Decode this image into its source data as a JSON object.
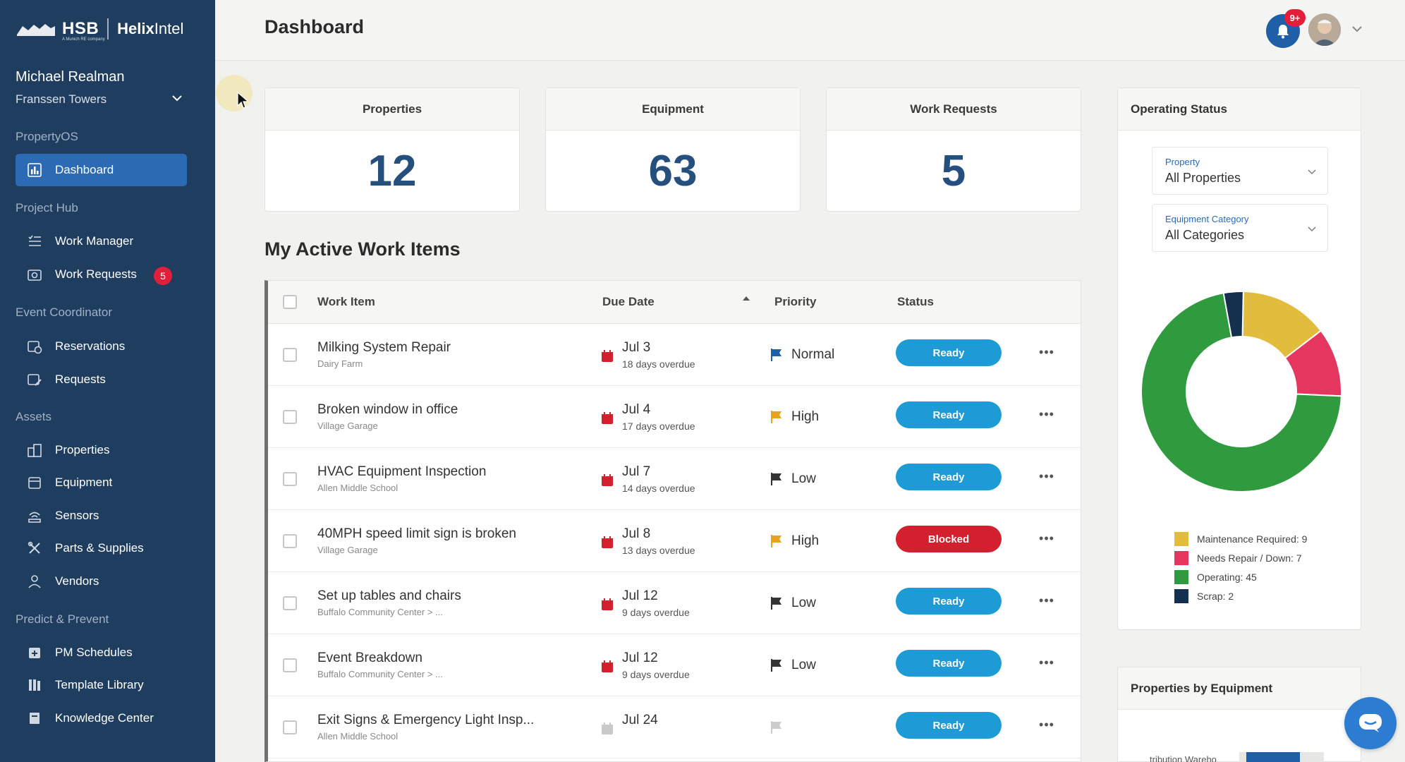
{
  "brand": {
    "company": "HSB",
    "company_sub": "A Munich RE company",
    "product_bold": "Helix",
    "product_light": "Intel"
  },
  "user": {
    "name": "Michael Realman",
    "property": "Franssen Towers"
  },
  "sidebar": {
    "sections": [
      {
        "title": "PropertyOS",
        "items": [
          {
            "label": "Dashboard",
            "icon": "chart-bars-icon",
            "active": true
          }
        ]
      },
      {
        "title": "Project Hub",
        "items": [
          {
            "label": "Work Manager",
            "icon": "list-check-icon"
          },
          {
            "label": "Work Requests",
            "icon": "camera-icon",
            "badge": "5"
          }
        ]
      },
      {
        "title": "Event Coordinator",
        "items": [
          {
            "label": "Reservations",
            "icon": "calendar-clock-icon"
          },
          {
            "label": "Requests",
            "icon": "calendar-edit-icon"
          }
        ]
      },
      {
        "title": "Assets",
        "items": [
          {
            "label": "Properties",
            "icon": "buildings-icon"
          },
          {
            "label": "Equipment",
            "icon": "equipment-box-icon"
          },
          {
            "label": "Sensors",
            "icon": "sensor-icon"
          },
          {
            "label": "Parts & Supplies",
            "icon": "tools-icon"
          },
          {
            "label": "Vendors",
            "icon": "person-icon"
          }
        ]
      },
      {
        "title": "Predict & Prevent",
        "items": [
          {
            "label": "PM Schedules",
            "icon": "calendar-plus-icon"
          },
          {
            "label": "Template Library",
            "icon": "library-icon"
          },
          {
            "label": "Knowledge Center",
            "icon": "book-icon"
          }
        ]
      }
    ]
  },
  "header": {
    "title": "Dashboard",
    "notifications": "9+"
  },
  "kpis": [
    {
      "label": "Properties",
      "value": "12"
    },
    {
      "label": "Equipment",
      "value": "63"
    },
    {
      "label": "Work Requests",
      "value": "5"
    }
  ],
  "work_items": {
    "title": "My Active Work Items",
    "columns": {
      "item": "Work Item",
      "due": "Due Date",
      "priority": "Priority",
      "status": "Status"
    },
    "rows": [
      {
        "title": "Milking System Repair",
        "location": "Dairy Farm",
        "due": "Jul 3",
        "overdue": "18 days overdue",
        "priority": "Normal",
        "status": "Ready"
      },
      {
        "title": "Broken window in office",
        "location": "Village Garage",
        "due": "Jul 4",
        "overdue": "17 days overdue",
        "priority": "High",
        "status": "Ready"
      },
      {
        "title": "HVAC Equipment Inspection",
        "location": "Allen Middle School",
        "due": "Jul 7",
        "overdue": "14 days overdue",
        "priority": "Low",
        "status": "Ready"
      },
      {
        "title": "40MPH speed limit sign is broken",
        "location": "Village Garage",
        "due": "Jul 8",
        "overdue": "13 days overdue",
        "priority": "High",
        "status": "Blocked"
      },
      {
        "title": "Set up tables and chairs",
        "location": "Buffalo Community Center > ...",
        "due": "Jul 12",
        "overdue": "9 days overdue",
        "priority": "Low",
        "status": "Ready"
      },
      {
        "title": "Event Breakdown",
        "location": "Buffalo Community Center > ...",
        "due": "Jul 12",
        "overdue": "9 days overdue",
        "priority": "Low",
        "status": "Ready"
      },
      {
        "title": "Exit Signs & Emergency Light Insp...",
        "location": "Allen Middle School",
        "due": "Jul 24",
        "overdue": "",
        "priority": "",
        "status": "Ready"
      }
    ]
  },
  "operating_status": {
    "title": "Operating Status",
    "property_filter": {
      "label": "Property",
      "value": "All Properties"
    },
    "category_filter": {
      "label": "Equipment Category",
      "value": "All Categories"
    },
    "legend": [
      {
        "label": "Maintenance Required: 9",
        "color": "#e2bc3c"
      },
      {
        "label": "Needs Repair / Down: 7",
        "color": "#e4365f"
      },
      {
        "label": "Operating: 45",
        "color": "#2f9a3e"
      },
      {
        "label": "Scrap: 2",
        "color": "#15304f"
      }
    ]
  },
  "chart_data": {
    "type": "pie",
    "title": "Operating Status",
    "categories": [
      "Maintenance Required",
      "Needs Repair / Down",
      "Operating",
      "Scrap"
    ],
    "values": [
      9,
      7,
      45,
      2
    ],
    "colors": [
      "#e2bc3c",
      "#e4365f",
      "#2f9a3e",
      "#15304f"
    ],
    "donut": true
  },
  "properties_by_equipment": {
    "title": "Properties by Equipment",
    "first_label": "tribution Wareho"
  }
}
